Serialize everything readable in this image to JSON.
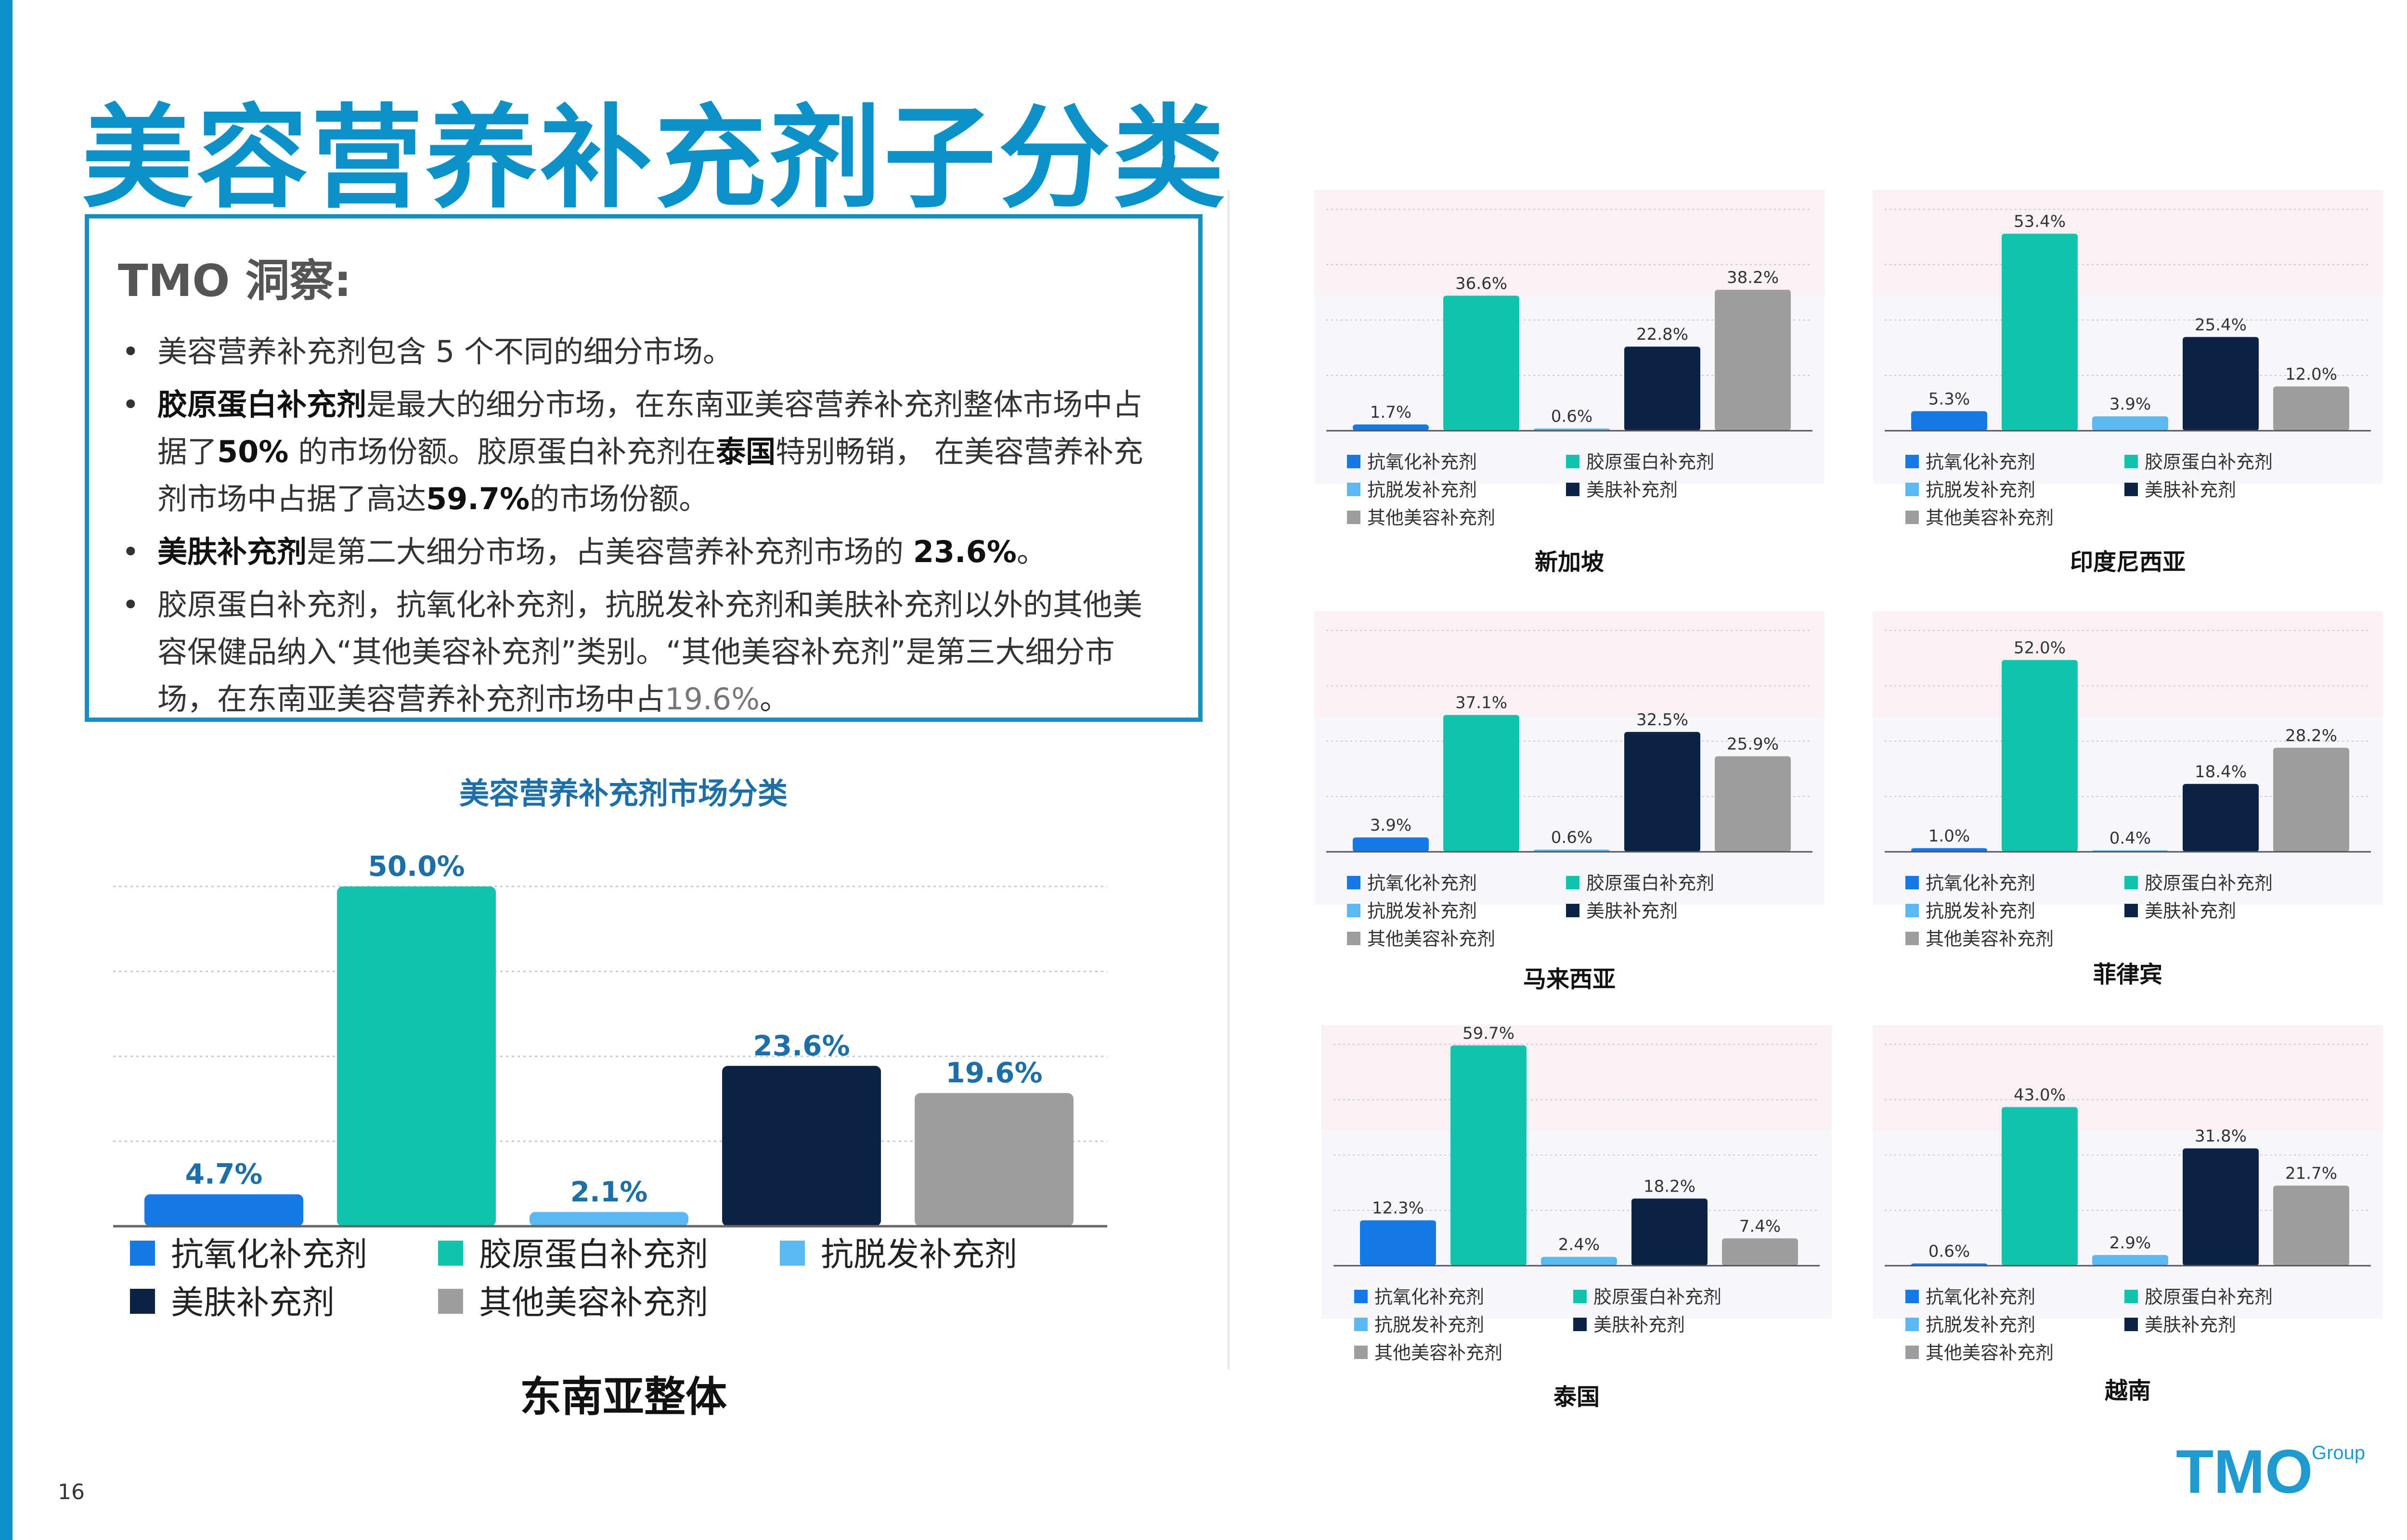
{
  "page": {
    "title": "美容营养补充剂子分类",
    "page_number": "16"
  },
  "insight": {
    "heading": "TMO 洞察:",
    "b1": "美容营养补充剂包含 5 个不同的细分市场。",
    "b2_s1": "胶原蛋白补充剂",
    "b2_t1": "是最大的细分市场，在东南亚美容营养补充剂整体市场中占据了",
    "b2_s2": "50%",
    "b2_t2": " 的市场份额。胶原蛋白补充剂在",
    "b2_s3": "泰国",
    "b2_t3": "特别畅销， 在美容营养补充剂市场中占据了高达",
    "b2_s4": "59.7%",
    "b2_t4": "的市场份额。",
    "b3_s1": "美肤补充剂",
    "b3_t1": "是第二大细分市场，占美容营养补充剂市场的 ",
    "b3_s2": "23.6%",
    "b3_t2": "。",
    "b4_t1": "胶原蛋白补充剂，抗氧化补充剂，抗脱发补充剂和美肤补充剂以外的其他美容保健品纳入“其他美容补充剂”类别。“其他美容补充剂”是第三大细分市场，在东南亚美容营养补充剂市场中占",
    "b4_g": "19.6%",
    "b4_t2": "。"
  },
  "logo": {
    "main": "TMO",
    "sub": "Group"
  },
  "colors": {
    "antioxidant": "#1479e6",
    "collagen": "#12c4b0",
    "hair": "#5bb8f0",
    "skin": "#0b2346",
    "other": "#9e9e9e",
    "accent": "#0b93c9",
    "subtitle": "#1d6fa8"
  },
  "chart_data": [
    {
      "type": "bar",
      "title": "美容营养补充剂市场分类",
      "region": "东南亚整体",
      "categories": [
        "抗氧化补充剂",
        "胶原蛋白补充剂",
        "抗脱发补充剂",
        "美肤补充剂",
        "其他美容补充剂"
      ],
      "values": [
        4.7,
        50.0,
        2.1,
        23.6,
        19.6
      ],
      "labels": [
        "4.7%",
        "50.0%",
        "2.1%",
        "23.6%",
        "19.6%"
      ],
      "ylim": [
        0,
        50
      ],
      "grid": true
    },
    {
      "type": "bar",
      "region": "新加坡",
      "categories": [
        "抗氧化补充剂",
        "胶原蛋白补充剂",
        "抗脱发补充剂",
        "美肤补充剂",
        "其他美容补充剂"
      ],
      "values": [
        1.7,
        36.6,
        0.6,
        22.8,
        38.2
      ],
      "labels": [
        "1.7%",
        "36.6%",
        "0.6%",
        "22.8%",
        "38.2%"
      ]
    },
    {
      "type": "bar",
      "region": "印度尼西亚",
      "categories": [
        "抗氧化补充剂",
        "胶原蛋白补充剂",
        "抗脱发补充剂",
        "美肤补充剂",
        "其他美容补充剂"
      ],
      "values": [
        5.3,
        53.4,
        3.9,
        25.4,
        12.0
      ],
      "labels": [
        "5.3%",
        "53.4%",
        "3.9%",
        "25.4%",
        "12.0%"
      ]
    },
    {
      "type": "bar",
      "region": "马来西亚",
      "categories": [
        "抗氧化补充剂",
        "胶原蛋白补充剂",
        "抗脱发补充剂",
        "美肤补充剂",
        "其他美容补充剂"
      ],
      "values": [
        3.9,
        37.1,
        0.6,
        32.5,
        25.9
      ],
      "labels": [
        "3.9%",
        "37.1%",
        "0.6%",
        "32.5%",
        "25.9%"
      ]
    },
    {
      "type": "bar",
      "region": "菲律宾",
      "categories": [
        "抗氧化补充剂",
        "胶原蛋白补充剂",
        "抗脱发补充剂",
        "美肤补充剂",
        "其他美容补充剂"
      ],
      "values": [
        1.0,
        52.0,
        0.4,
        18.4,
        28.2
      ],
      "labels": [
        "1.0%",
        "52.0%",
        "0.4%",
        "18.4%",
        "28.2%"
      ]
    },
    {
      "type": "bar",
      "region": "泰国",
      "categories": [
        "抗氧化补充剂",
        "胶原蛋白补充剂",
        "抗脱发补充剂",
        "美肤补充剂",
        "其他美容补充剂"
      ],
      "values": [
        12.3,
        59.7,
        2.4,
        18.2,
        7.4
      ],
      "labels": [
        "12.3%",
        "59.7%",
        "2.4%",
        "18.2%",
        "7.4%"
      ]
    },
    {
      "type": "bar",
      "region": "越南",
      "categories": [
        "抗氧化补充剂",
        "胶原蛋白补充剂",
        "抗脱发补充剂",
        "美肤补充剂",
        "其他美容补充剂"
      ],
      "values": [
        0.6,
        43.0,
        2.9,
        31.8,
        21.7
      ],
      "labels": [
        "0.6%",
        "43.0%",
        "2.9%",
        "31.8%",
        "21.7%"
      ]
    }
  ]
}
